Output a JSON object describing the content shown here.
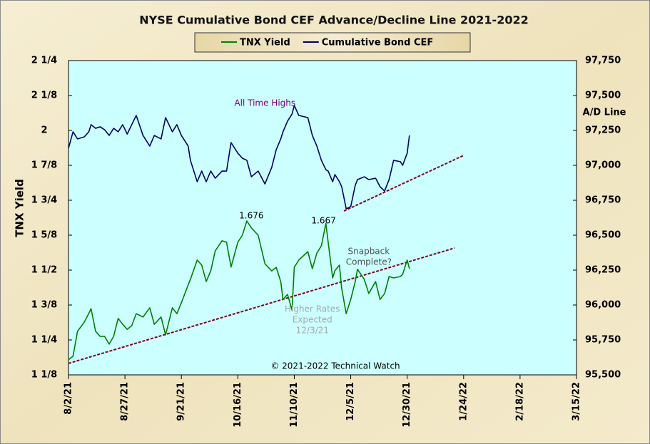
{
  "chart_data": {
    "type": "line",
    "title": "NYSE Cumulative  Bond CEF Advance/Decline  Line 2021-2022",
    "legend": "top",
    "ylabel": "TNX Yield",
    "y2label": "A/D Line",
    "credit": "© 2021-2022  Technical Watch",
    "x": [
      "2021-08-02",
      "2021-08-04",
      "2021-08-06",
      "2021-08-09",
      "2021-08-11",
      "2021-08-12",
      "2021-08-14",
      "2021-08-16",
      "2021-08-18",
      "2021-08-20",
      "2021-08-22",
      "2021-08-24",
      "2021-08-26",
      "2021-08-28",
      "2021-08-30",
      "2021-09-01",
      "2021-09-04",
      "2021-09-07",
      "2021-09-09",
      "2021-09-12",
      "2021-09-14",
      "2021-09-17",
      "2021-09-19",
      "2021-09-21",
      "2021-09-24",
      "2021-09-25",
      "2021-09-28",
      "2021-09-30",
      "2021-10-02",
      "2021-10-04",
      "2021-10-06",
      "2021-10-09",
      "2021-10-11",
      "2021-10-13",
      "2021-10-16",
      "2021-10-18",
      "2021-10-20",
      "2021-10-22",
      "2021-10-25",
      "2021-10-28",
      "2021-10-31",
      "2021-11-02",
      "2021-11-04",
      "2021-11-05",
      "2021-11-07",
      "2021-11-09",
      "2021-11-10",
      "2021-11-12",
      "2021-11-16",
      "2021-11-18",
      "2021-11-20",
      "2021-11-22",
      "2021-11-24",
      "2021-11-25",
      "2021-11-27",
      "2021-11-28",
      "2021-11-30",
      "2021-12-01",
      "2021-12-03",
      "2021-12-05",
      "2021-12-07",
      "2021-12-08",
      "2021-12-11",
      "2021-12-13",
      "2021-12-16",
      "2021-12-18",
      "2021-12-20",
      "2021-12-22",
      "2021-12-24",
      "2021-12-27",
      "2021-12-28",
      "2021-12-30",
      "2021-12-31"
    ],
    "xlim": [
      "2021-08-02",
      "2022-03-15"
    ],
    "xticks": [
      {
        "value": "2021-08-02",
        "label": "8/2/21"
      },
      {
        "value": "2021-08-27",
        "label": "8/27/21"
      },
      {
        "value": "2021-09-21",
        "label": "9/21/21"
      },
      {
        "value": "2021-10-16",
        "label": "10/16/21"
      },
      {
        "value": "2021-11-10",
        "label": "11/10/21"
      },
      {
        "value": "2021-12-05",
        "label": "12/5/21"
      },
      {
        "value": "2021-12-30",
        "label": "12/30/21"
      },
      {
        "value": "2022-01-24",
        "label": "1/24/22"
      },
      {
        "value": "2022-02-18",
        "label": "2/18/22"
      },
      {
        "value": "2022-03-15",
        "label": "3/15/22"
      }
    ],
    "ylim": [
      1.125,
      2.25
    ],
    "yticks": [
      {
        "value": 1.125,
        "label": "1 1/8"
      },
      {
        "value": 1.25,
        "label": "1 1/4"
      },
      {
        "value": 1.375,
        "label": "1 3/8"
      },
      {
        "value": 1.5,
        "label": "1 1/2"
      },
      {
        "value": 1.625,
        "label": "1 5/8"
      },
      {
        "value": 1.75,
        "label": "1 3/4"
      },
      {
        "value": 1.875,
        "label": "1 7/8"
      },
      2,
      {
        "value": 2.125,
        "label": "2 1/8"
      },
      {
        "value": 2.25,
        "label": "2 1/4"
      }
    ],
    "y2lim": [
      95500,
      97750
    ],
    "y2ticks": [
      {
        "value": 95500,
        "label": "95,500"
      },
      {
        "value": 95750,
        "label": "95,750"
      },
      {
        "value": 96000,
        "label": "96,000"
      },
      {
        "value": 96250,
        "label": "96,250"
      },
      {
        "value": 96500,
        "label": "96,500"
      },
      {
        "value": 96750,
        "label": "96,750"
      },
      {
        "value": 97000,
        "label": "97,000"
      },
      {
        "value": 97250,
        "label": "97,250"
      },
      {
        "value": 97500,
        "label": "97,500"
      },
      {
        "value": 97750,
        "label": "97,750"
      }
    ],
    "series": [
      {
        "name": "TNX Yield",
        "color": "#008000",
        "values": [
          1.179,
          1.192,
          1.281,
          1.314,
          1.345,
          1.362,
          1.281,
          1.263,
          1.263,
          1.235,
          1.263,
          1.327,
          1.306,
          1.288,
          1.301,
          1.344,
          1.332,
          1.365,
          1.306,
          1.332,
          1.268,
          1.365,
          1.344,
          1.383,
          1.447,
          1.467,
          1.536,
          1.518,
          1.459,
          1.497,
          1.569,
          1.605,
          1.6,
          1.511,
          1.6,
          1.625,
          1.676,
          1.651,
          1.625,
          1.523,
          1.497,
          1.51,
          1.459,
          1.395,
          1.413,
          1.357,
          1.51,
          1.536,
          1.566,
          1.505,
          1.561,
          1.587,
          1.667,
          1.6,
          1.472,
          1.498,
          1.518,
          1.434,
          1.344,
          1.395,
          1.459,
          1.503,
          1.467,
          1.416,
          1.459,
          1.395,
          1.416,
          1.477,
          1.472,
          1.477,
          1.485,
          1.536,
          1.505
        ]
      },
      {
        "name": "Cumulative Bond CEF",
        "color": "#000066",
        "axis": "y2",
        "values": [
          97122,
          97240,
          97189,
          97204,
          97240,
          97291,
          97265,
          97276,
          97255,
          97214,
          97265,
          97240,
          97291,
          97224,
          97291,
          97357,
          97214,
          97138,
          97214,
          97189,
          97342,
          97240,
          97291,
          97214,
          97138,
          97036,
          96883,
          96959,
          96883,
          96959,
          96908,
          96959,
          96959,
          97163,
          97087,
          97051,
          97036,
          96918,
          96959,
          96867,
          96985,
          97112,
          97189,
          97240,
          97316,
          97367,
          97429,
          97357,
          97342,
          97214,
          97138,
          97036,
          96969,
          96959,
          96883,
          96934,
          96883,
          96847,
          96689,
          96704,
          96857,
          96898,
          96918,
          96898,
          96908,
          96847,
          96816,
          96898,
          97036,
          97026,
          97000,
          97087,
          97214
        ]
      }
    ],
    "trendlines": [
      {
        "color": "#800020",
        "x": [
          "2021-08-02",
          "2022-01-20"
        ],
        "values": [
          1.166,
          1.579
        ]
      },
      {
        "color": "#800020",
        "axis": "y2",
        "x": [
          "2021-12-02",
          "2022-01-24"
        ],
        "values": [
          96673,
          97071
        ]
      }
    ],
    "annotations": [
      {
        "text": [
          "All Time Highs"
        ],
        "color": "#800080",
        "axis": "y2",
        "x": "2021-10-28",
        "y": 97444
      },
      {
        "text": [
          "1.676"
        ],
        "color": "#000000",
        "x": "2021-10-22",
        "y": 1.694
      },
      {
        "text": [
          "1.667"
        ],
        "color": "#000000",
        "x": "2021-11-23",
        "y": 1.676
      },
      {
        "text": [
          "Snapback",
          "Complete?"
        ],
        "color": "#505050",
        "x": "2021-12-13",
        "y": 1.566
      },
      {
        "text": [
          "Higher Rates",
          "Expected",
          "12/3/21"
        ],
        "color": "#a8a8a8",
        "x": "2021-11-18",
        "y": 1.36
      }
    ]
  }
}
